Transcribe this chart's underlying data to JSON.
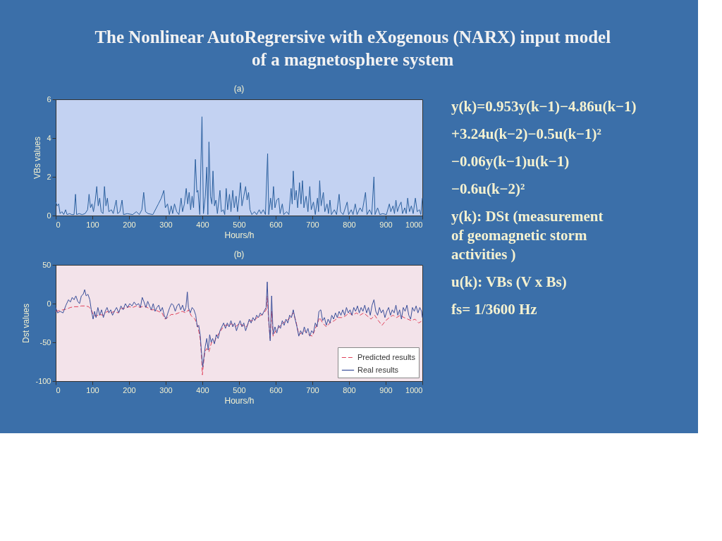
{
  "chart_data": [
    {
      "type": "line",
      "title": "(a)",
      "xlabel": "Hours/h",
      "ylabel": "VBs values",
      "color": "#2a5f9e",
      "x": [
        0,
        4,
        8,
        12,
        17,
        22,
        27,
        31,
        38,
        44,
        50,
        54,
        57,
        64,
        72,
        80,
        87,
        91,
        95,
        99,
        103,
        108,
        112,
        116,
        120,
        124,
        129,
        133,
        137,
        141,
        145,
        152,
        157,
        165,
        169,
        175,
        181,
        185,
        195,
        210,
        220,
        228,
        235,
        240,
        245,
        252,
        265,
        280,
        288,
        295,
        299,
        305,
        310,
        315,
        319,
        324,
        330,
        336,
        342,
        346,
        351,
        356,
        360,
        364,
        368,
        372,
        376,
        381,
        385,
        388,
        393,
        399,
        403,
        408,
        412,
        415,
        418,
        422,
        426,
        429,
        433,
        437,
        441,
        448,
        452,
        457,
        461,
        465,
        469,
        474,
        478,
        483,
        487,
        492,
        496,
        500,
        504,
        508,
        513,
        518,
        522,
        526,
        530,
        535,
        542,
        548,
        555,
        560,
        566,
        572,
        578,
        581,
        586,
        590,
        594,
        598,
        603,
        608,
        612,
        618,
        622,
        630,
        636,
        642,
        645,
        648,
        652,
        656,
        660,
        665,
        669,
        673,
        677,
        683,
        688,
        693,
        697,
        703,
        708,
        714,
        717,
        720,
        724,
        730,
        734,
        740,
        744,
        748,
        752,
        760,
        766,
        773,
        777,
        784,
        790,
        795,
        799,
        806,
        811,
        817,
        822,
        830,
        836,
        845,
        849,
        856,
        862,
        868,
        871,
        878,
        884,
        892,
        902,
        910,
        914,
        920,
        924,
        928,
        932,
        937,
        942,
        946,
        952,
        956,
        960,
        965,
        970,
        975,
        981,
        986,
        992,
        996,
        1000
      ],
      "values": [
        0.7,
        0.5,
        0.6,
        0.1,
        0.2,
        0.05,
        0.3,
        0.05,
        0.1,
        0.05,
        0.05,
        1.1,
        0.05,
        0.1,
        0.05,
        0.1,
        0.3,
        1.1,
        0.4,
        0.6,
        0.2,
        0.8,
        1.5,
        0.5,
        0.9,
        0.2,
        0.1,
        1.5,
        0.5,
        0.9,
        0.2,
        0.3,
        0.1,
        0.8,
        0.1,
        0.2,
        0.8,
        0.05,
        0.1,
        0.05,
        0.2,
        0.05,
        0.3,
        1.2,
        0.2,
        0.1,
        0.05,
        0.6,
        0.9,
        1.3,
        0.4,
        0.6,
        0.05,
        0.5,
        0.1,
        0.6,
        0.2,
        0.05,
        0.9,
        0.2,
        0.6,
        1.4,
        0.6,
        1.2,
        0.3,
        1.0,
        0.4,
        2.9,
        1.2,
        1.3,
        0.05,
        5.1,
        0.1,
        1.0,
        2.5,
        0.05,
        3.8,
        1.0,
        0.6,
        2.3,
        0.5,
        0.8,
        0.1,
        1.3,
        0.2,
        0.3,
        0.05,
        1.4,
        0.3,
        1.1,
        0.2,
        1.3,
        0.4,
        1.0,
        0.2,
        0.9,
        1.7,
        0.5,
        1.0,
        1.5,
        0.8,
        1.2,
        0.3,
        0.05,
        0.2,
        0.05,
        0.3,
        0.1,
        0.3,
        0.05,
        3.2,
        0.05,
        0.9,
        0.3,
        1.5,
        0.4,
        0.8,
        0.9,
        0.1,
        0.6,
        0.05,
        0.2,
        0.05,
        1.4,
        0.6,
        2.3,
        0.8,
        1.3,
        0.4,
        1.7,
        0.6,
        1.8,
        0.4,
        1.0,
        0.2,
        1.5,
        0.3,
        0.7,
        0.05,
        0.9,
        0.2,
        1.8,
        0.5,
        1.2,
        0.2,
        0.6,
        0.1,
        0.8,
        0.05,
        0.3,
        0.05,
        1.1,
        0.2,
        0.05,
        0.4,
        0.7,
        0.05,
        0.3,
        0.05,
        0.6,
        0.05,
        0.4,
        0.2,
        1.2,
        0.05,
        0.3,
        0.05,
        2.0,
        0.05,
        0.4,
        0.05,
        0.1,
        0.05,
        0.6,
        0.2,
        0.5,
        0.1,
        0.8,
        0.2,
        0.5,
        0.7,
        0.1,
        0.4,
        0.1,
        0.9,
        0.2,
        0.5,
        0.1,
        0.9,
        0.2,
        0.3,
        0.05,
        0.9
      ],
      "xlim": [
        0,
        1000
      ],
      "xticks": [
        0,
        100,
        200,
        300,
        400,
        500,
        600,
        700,
        800,
        900,
        1000
      ],
      "ylim": [
        0,
        6
      ],
      "yticks": [
        0,
        2,
        4,
        6
      ]
    },
    {
      "type": "line",
      "title": "(b)",
      "xlabel": "Hours/h",
      "ylabel": "Dst values",
      "legend": "bottom right",
      "series": [
        {
          "name": "Predicted results",
          "color": "#e0405a",
          "line_style": "dashed",
          "x": [
            0,
            10,
            20,
            30,
            40,
            50,
            60,
            70,
            80,
            90,
            97,
            103,
            110,
            120,
            130,
            140,
            150,
            160,
            170,
            180,
            190,
            200,
            210,
            220,
            230,
            240,
            250,
            260,
            270,
            280,
            290,
            298,
            305,
            315,
            325,
            335,
            345,
            355,
            362,
            370,
            380,
            388,
            394,
            398,
            400,
            403,
            407,
            412,
            418,
            425,
            432,
            440,
            450,
            460,
            470,
            480,
            490,
            500,
            510,
            520,
            530,
            540,
            550,
            560,
            568,
            574,
            577,
            581,
            585,
            589,
            593,
            600,
            610,
            620,
            630,
            640,
            648,
            655,
            663,
            670,
            680,
            690,
            700,
            710,
            720,
            728,
            738,
            748,
            760,
            770,
            780,
            790,
            800,
            810,
            820,
            830,
            840,
            850,
            860,
            870,
            880,
            890,
            900,
            910,
            920,
            930,
            940,
            950,
            960,
            970,
            980,
            990,
            1000
          ],
          "values": [
            -10,
            -9,
            -8,
            -7,
            -5,
            -4,
            -4,
            -3,
            -3,
            -4,
            -8,
            -15,
            -16,
            -14,
            -15,
            -10,
            -12,
            -10,
            -12,
            -6,
            -6,
            -4,
            -5,
            -3,
            -5,
            -3,
            -5,
            -8,
            -8,
            -10,
            -12,
            -20,
            -18,
            -14,
            -14,
            -12,
            -10,
            -12,
            -8,
            -16,
            -20,
            -30,
            -45,
            -70,
            -92,
            -78,
            -62,
            -58,
            -62,
            -50,
            -50,
            -42,
            -35,
            -28,
            -28,
            -26,
            -30,
            -26,
            -28,
            -30,
            -22,
            -22,
            -18,
            -15,
            -12,
            -8,
            10,
            -25,
            -45,
            -10,
            -42,
            -35,
            -30,
            -25,
            -22,
            -18,
            -12,
            -22,
            -40,
            -38,
            -35,
            -40,
            -42,
            -30,
            -18,
            -25,
            -30,
            -25,
            -22,
            -18,
            -18,
            -16,
            -12,
            -15,
            -12,
            -15,
            -12,
            -16,
            -20,
            -15,
            -22,
            -28,
            -22,
            -18,
            -15,
            -18,
            -15,
            -18,
            -20,
            -22,
            -20,
            -25,
            -22
          ]
        },
        {
          "name": "Real results",
          "color": "#3a4f9a",
          "x": [
            0,
            5,
            12,
            20,
            28,
            35,
            40,
            45,
            50,
            55,
            60,
            65,
            70,
            75,
            79,
            83,
            88,
            93,
            97,
            102,
            106,
            110,
            115,
            120,
            125,
            130,
            135,
            140,
            145,
            150,
            155,
            160,
            166,
            172,
            178,
            184,
            190,
            196,
            202,
            208,
            214,
            220,
            226,
            231,
            236,
            241,
            246,
            251,
            256,
            261,
            266,
            271,
            276,
            281,
            286,
            291,
            296,
            301,
            306,
            311,
            316,
            321,
            326,
            331,
            336,
            341,
            346,
            351,
            355,
            359,
            362,
            367,
            372,
            377,
            382,
            386,
            390,
            394,
            398,
            401,
            404,
            408,
            412,
            416,
            420,
            424,
            428,
            433,
            438,
            443,
            448,
            453,
            458,
            463,
            468,
            473,
            478,
            483,
            488,
            493,
            498,
            503,
            508,
            513,
            518,
            523,
            528,
            533,
            538,
            543,
            548,
            553,
            558,
            563,
            568,
            574,
            577,
            581,
            585,
            589,
            593,
            598,
            603,
            608,
            613,
            618,
            623,
            628,
            633,
            638,
            643,
            648,
            653,
            658,
            663,
            668,
            673,
            678,
            683,
            688,
            693,
            698,
            703,
            708,
            713,
            718,
            723,
            728,
            733,
            738,
            743,
            748,
            753,
            758,
            763,
            768,
            773,
            778,
            783,
            788,
            793,
            798,
            803,
            808,
            813,
            818,
            823,
            828,
            833,
            838,
            843,
            848,
            853,
            858,
            863,
            868,
            873,
            878,
            883,
            888,
            893,
            898,
            903,
            908,
            913,
            918,
            923,
            928,
            933,
            938,
            943,
            948,
            953,
            958,
            963,
            968,
            973,
            978,
            983,
            988,
            993,
            998,
            1000
          ],
          "values": [
            -5,
            -12,
            -10,
            -12,
            -2,
            5,
            2,
            8,
            5,
            10,
            3,
            0,
            10,
            12,
            18,
            10,
            12,
            5,
            -8,
            -20,
            -10,
            -18,
            -5,
            -15,
            -8,
            -18,
            -10,
            -5,
            -12,
            -8,
            -15,
            -10,
            -5,
            -12,
            -3,
            -8,
            0,
            -5,
            0,
            -3,
            2,
            -2,
            0,
            -5,
            8,
            2,
            -5,
            3,
            -3,
            -8,
            0,
            -10,
            -5,
            -2,
            -10,
            -5,
            -15,
            -20,
            -12,
            -5,
            0,
            -2,
            -10,
            -3,
            0,
            -8,
            -2,
            -10,
            -5,
            15,
            -5,
            -12,
            -5,
            -8,
            -15,
            -30,
            -28,
            -40,
            -65,
            -82,
            -70,
            -55,
            -45,
            -60,
            -40,
            -50,
            -45,
            -52,
            -40,
            -45,
            -35,
            -30,
            -25,
            -32,
            -25,
            -30,
            -22,
            -30,
            -25,
            -35,
            -28,
            -22,
            -30,
            -25,
            -35,
            -28,
            -20,
            -25,
            -18,
            -22,
            -15,
            -18,
            -12,
            -15,
            -10,
            -5,
            28,
            -20,
            -48,
            10,
            -40,
            -30,
            -38,
            -28,
            -32,
            -22,
            -28,
            -20,
            -25,
            -15,
            -18,
            -8,
            -20,
            -30,
            -42,
            -35,
            -40,
            -30,
            -38,
            -32,
            -42,
            -35,
            -38,
            -25,
            -30,
            -10,
            -8,
            -22,
            -18,
            -28,
            -20,
            -25,
            -15,
            -20,
            -12,
            -18,
            -10,
            -15,
            -8,
            -15,
            -5,
            -12,
            -8,
            -15,
            -5,
            -10,
            -3,
            -12,
            -5,
            -10,
            -2,
            -12,
            -5,
            -15,
            -2,
            5,
            -10,
            -15,
            -5,
            -12,
            -8,
            -18,
            -10,
            -5,
            -15,
            -8,
            -12,
            -2,
            -15,
            -8,
            -20,
            -5,
            -10,
            -2,
            -15,
            -20,
            -5,
            -10,
            -3,
            -12,
            -5,
            -10,
            -18
          ]
        }
      ],
      "xlim": [
        0,
        1000
      ],
      "xticks": [
        0,
        100,
        200,
        300,
        400,
        500,
        600,
        700,
        800,
        900,
        1000
      ],
      "ylim": [
        -100,
        50
      ],
      "yticks": [
        -100,
        -50,
        0,
        50
      ]
    },
    {
      "type": "other",
      "title": "The Nonlinear AutoRegrersive with eXogenous (NARX) input model of a magnetosphere system",
      "annotations": [
        "y(k)=0.953y(k−1)−4.86u(k−1)",
        "+3.24u(k−2)−0.5u(k−1)²",
        "−0.06y(k−1)u(k−1)",
        "−0.6u(k−2)²",
        "y(k): DSt (measurement of geomagnetic storm activities )",
        "u(k): VBs (V x Bs)",
        "fs= 1/3600 Hz"
      ]
    }
  ]
}
